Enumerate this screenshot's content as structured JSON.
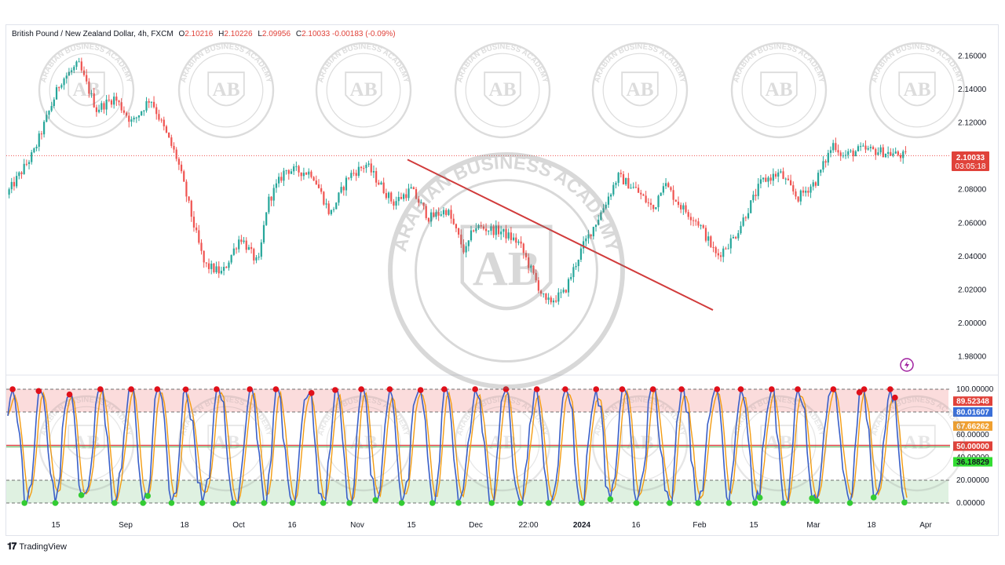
{
  "legend": {
    "symbol": "British Pound / New Zealand Dollar, 4h, FXCM",
    "o_label": "O",
    "o": "2.10216",
    "h_label": "H",
    "h": "2.10226",
    "l_label": "L",
    "l": "2.09956",
    "c_label": "C",
    "c": "2.10033",
    "change": "-0.00183 (-0.09%)"
  },
  "price_badge": {
    "price": "2.10033",
    "countdown": "03:05:18",
    "color": "#e0423a"
  },
  "branding": {
    "text": "TradingView"
  },
  "watermark": {
    "initials": "AB",
    "text": "ARABIAN BUSINESS ACADEMY"
  },
  "colors": {
    "candle_up": "#26a69a",
    "candle_down": "#ef5350",
    "trendline": "#d13b3b",
    "stoch_k": "#3a5fc8",
    "stoch_d": "#f39c12",
    "overbought_fill": "#fbdcdc",
    "oversold_fill": "#dff1e1",
    "dot_red": "#e0101a",
    "dot_green": "#33cc33",
    "midline_red": "#d32f2f",
    "midline_green": "#4caf50"
  },
  "chart_data": [
    {
      "type": "candlestick",
      "title": "British Pound / New Zealand Dollar, 4h, FXCM",
      "ylim": [
        1.97,
        2.17
      ],
      "y_ticks": [
        "2.16000",
        "2.14000",
        "2.12000",
        "2.10000",
        "2.08000",
        "2.06000",
        "2.04000",
        "2.02000",
        "2.00000",
        "1.98000"
      ],
      "x_ticks": [
        "15",
        "Sep",
        "18",
        "Oct",
        "16",
        "Nov",
        "15",
        "Dec",
        "22:00",
        "2024",
        "16",
        "Feb",
        "15",
        "Mar",
        "18",
        "Apr"
      ],
      "close_path": {
        "t": [
          0.0,
          0.03,
          0.06,
          0.08,
          0.1,
          0.12,
          0.14,
          0.16,
          0.19,
          0.21,
          0.22,
          0.24,
          0.26,
          0.28,
          0.29,
          0.31,
          0.34,
          0.36,
          0.38,
          0.4,
          0.43,
          0.45,
          0.47,
          0.49,
          0.51,
          0.52,
          0.55,
          0.57,
          0.6,
          0.62,
          0.64,
          0.66,
          0.68,
          0.7,
          0.72,
          0.73,
          0.75,
          0.77,
          0.79,
          0.81,
          0.84,
          0.86,
          0.88,
          0.9,
          0.92,
          0.93,
          0.95,
          0.97,
          1.0
        ],
        "price": [
          2.077,
          2.102,
          2.145,
          2.155,
          2.128,
          2.135,
          2.12,
          2.135,
          2.098,
          2.055,
          2.035,
          2.03,
          2.052,
          2.035,
          2.072,
          2.092,
          2.09,
          2.065,
          2.088,
          2.095,
          2.072,
          2.08,
          2.063,
          2.068,
          2.042,
          2.058,
          2.055,
          2.048,
          2.012,
          2.018,
          2.045,
          2.065,
          2.088,
          2.08,
          2.068,
          2.085,
          2.07,
          2.06,
          2.04,
          2.052,
          2.085,
          2.09,
          2.075,
          2.085,
          2.108,
          2.1,
          2.104,
          2.103,
          2.1
        ]
      },
      "current_price": 2.10033,
      "trendline": {
        "from_price": 2.098,
        "to_price": 2.008,
        "label": ""
      }
    },
    {
      "type": "line",
      "title": "",
      "ylim": [
        0,
        100
      ],
      "y_ticks": [
        "100.00000",
        "80.00000",
        "60.00000",
        "40.00000",
        "20.00000",
        "0.00000"
      ],
      "levels": [
        100,
        80,
        50,
        20,
        0
      ],
      "value_badges": [
        {
          "value": "89.52348",
          "level": 89.52,
          "color": "#e0423a",
          "text_color": "#ffffff"
        },
        {
          "value": "80.01607",
          "level": 80.0,
          "color": "#3a6fd8",
          "text_color": "#ffffff"
        },
        {
          "value": "67.66262",
          "level": 67.66,
          "color": "#f0a030",
          "text_color": "#ffffff"
        },
        {
          "value": "50.00000",
          "level": 50.0,
          "color": "#e0423a",
          "text_color": "#ffffff"
        },
        {
          "value": "36.18829",
          "level": 36.19,
          "color": "#33dd33",
          "text_color": "#131722"
        }
      ],
      "series": [
        {
          "name": "",
          "kind": "%K",
          "period_bars": 30
        },
        {
          "name": "",
          "kind": "%D",
          "period_bars": 30
        }
      ]
    }
  ]
}
